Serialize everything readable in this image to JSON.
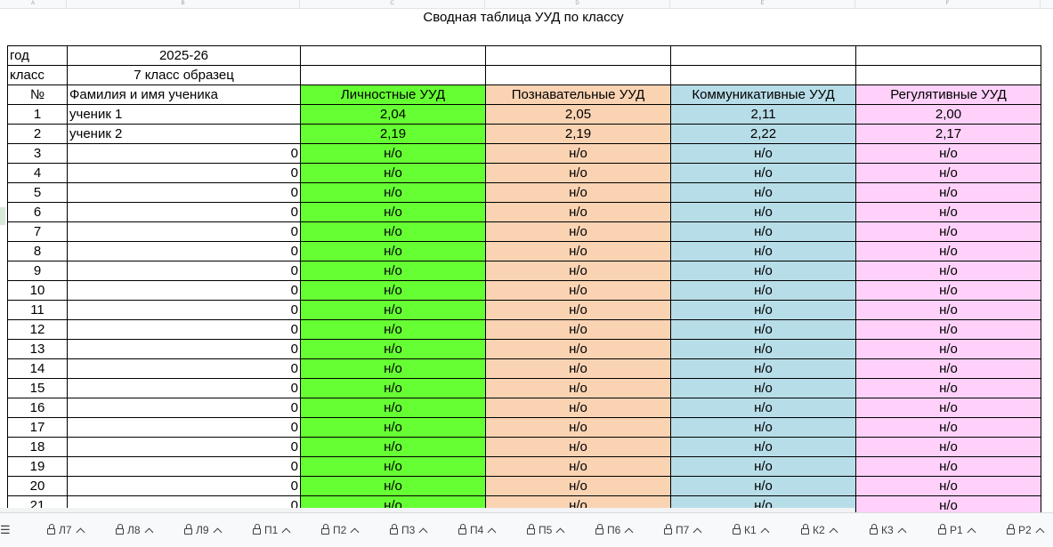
{
  "sheet": {
    "title": "Сводная таблица УУД по классу",
    "column_letters": [
      "A",
      "B",
      "C",
      "D",
      "E",
      "F"
    ],
    "meta": [
      {
        "label": "год",
        "value": "2025-26"
      },
      {
        "label": "класс",
        "value": "7 класс образец"
      }
    ],
    "headers": {
      "num": "№",
      "name": "Фамилия и имя ученика",
      "personal": "Личностные УУД",
      "cognitive": "Познавательные УУД",
      "communicative": "Коммуникативные УУД",
      "regulatory": "Регулятивные УУД"
    },
    "rows": [
      {
        "num": "1",
        "name": "ученик 1",
        "personal": "2,04",
        "cognitive": "2,05",
        "communicative": "2,11",
        "regulatory": "2,00"
      },
      {
        "num": "2",
        "name": "ученик 2",
        "personal": "2,19",
        "cognitive": "2,19",
        "communicative": "2,22",
        "regulatory": "2,17"
      },
      {
        "num": "3",
        "name": "0",
        "personal": "н/о",
        "cognitive": "н/о",
        "communicative": "н/о",
        "regulatory": "н/о"
      },
      {
        "num": "4",
        "name": "0",
        "personal": "н/о",
        "cognitive": "н/о",
        "communicative": "н/о",
        "regulatory": "н/о"
      },
      {
        "num": "5",
        "name": "0",
        "personal": "н/о",
        "cognitive": "н/о",
        "communicative": "н/о",
        "regulatory": "н/о"
      },
      {
        "num": "6",
        "name": "0",
        "personal": "н/о",
        "cognitive": "н/о",
        "communicative": "н/о",
        "regulatory": "н/о"
      },
      {
        "num": "7",
        "name": "0",
        "personal": "н/о",
        "cognitive": "н/о",
        "communicative": "н/о",
        "regulatory": "н/о"
      },
      {
        "num": "8",
        "name": "0",
        "personal": "н/о",
        "cognitive": "н/о",
        "communicative": "н/о",
        "regulatory": "н/о"
      },
      {
        "num": "9",
        "name": "0",
        "personal": "н/о",
        "cognitive": "н/о",
        "communicative": "н/о",
        "regulatory": "н/о"
      },
      {
        "num": "10",
        "name": "0",
        "personal": "н/о",
        "cognitive": "н/о",
        "communicative": "н/о",
        "regulatory": "н/о"
      },
      {
        "num": "11",
        "name": "0",
        "personal": "н/о",
        "cognitive": "н/о",
        "communicative": "н/о",
        "regulatory": "н/о"
      },
      {
        "num": "12",
        "name": "0",
        "personal": "н/о",
        "cognitive": "н/о",
        "communicative": "н/о",
        "regulatory": "н/о"
      },
      {
        "num": "13",
        "name": "0",
        "personal": "н/о",
        "cognitive": "н/о",
        "communicative": "н/о",
        "regulatory": "н/о"
      },
      {
        "num": "14",
        "name": "0",
        "personal": "н/о",
        "cognitive": "н/о",
        "communicative": "н/о",
        "regulatory": "н/о"
      },
      {
        "num": "15",
        "name": "0",
        "personal": "н/о",
        "cognitive": "н/о",
        "communicative": "н/о",
        "regulatory": "н/о"
      },
      {
        "num": "16",
        "name": "0",
        "personal": "н/о",
        "cognitive": "н/о",
        "communicative": "н/о",
        "regulatory": "н/о"
      },
      {
        "num": "17",
        "name": "0",
        "personal": "н/о",
        "cognitive": "н/о",
        "communicative": "н/о",
        "regulatory": "н/о"
      },
      {
        "num": "18",
        "name": "0",
        "personal": "н/о",
        "cognitive": "н/о",
        "communicative": "н/о",
        "regulatory": "н/о"
      },
      {
        "num": "19",
        "name": "0",
        "personal": "н/о",
        "cognitive": "н/о",
        "communicative": "н/о",
        "regulatory": "н/о"
      },
      {
        "num": "20",
        "name": "0",
        "personal": "н/о",
        "cognitive": "н/о",
        "communicative": "н/о",
        "regulatory": "н/о"
      },
      {
        "num": "21",
        "name": "0",
        "personal": "н/о",
        "cognitive": "н/о",
        "communicative": "н/о",
        "regulatory": "н/о"
      }
    ]
  },
  "colors": {
    "personal": "#66ff33",
    "cognitive": "#fad3b3",
    "communicative": "#b7dde8",
    "regulatory": "#ffd1fa"
  },
  "tabs": {
    "menu_icon": "menu-icon",
    "items": [
      {
        "label": "Л7",
        "icon": "lock-icon"
      },
      {
        "label": "Л8",
        "icon": "lock-icon"
      },
      {
        "label": "Л9",
        "icon": "lock-icon"
      },
      {
        "label": "П1",
        "icon": "lock-icon"
      },
      {
        "label": "П2",
        "icon": "lock-icon"
      },
      {
        "label": "П3",
        "icon": "lock-icon"
      },
      {
        "label": "П4",
        "icon": "lock-icon"
      },
      {
        "label": "П5",
        "icon": "lock-icon"
      },
      {
        "label": "П6",
        "icon": "lock-icon"
      },
      {
        "label": "П7",
        "icon": "lock-icon"
      },
      {
        "label": "К1",
        "icon": "lock-icon"
      },
      {
        "label": "К2",
        "icon": "lock-icon"
      },
      {
        "label": "К3",
        "icon": "lock-icon"
      },
      {
        "label": "Р1",
        "icon": "lock-icon"
      },
      {
        "label": "Р2",
        "icon": "lock-icon"
      }
    ]
  }
}
